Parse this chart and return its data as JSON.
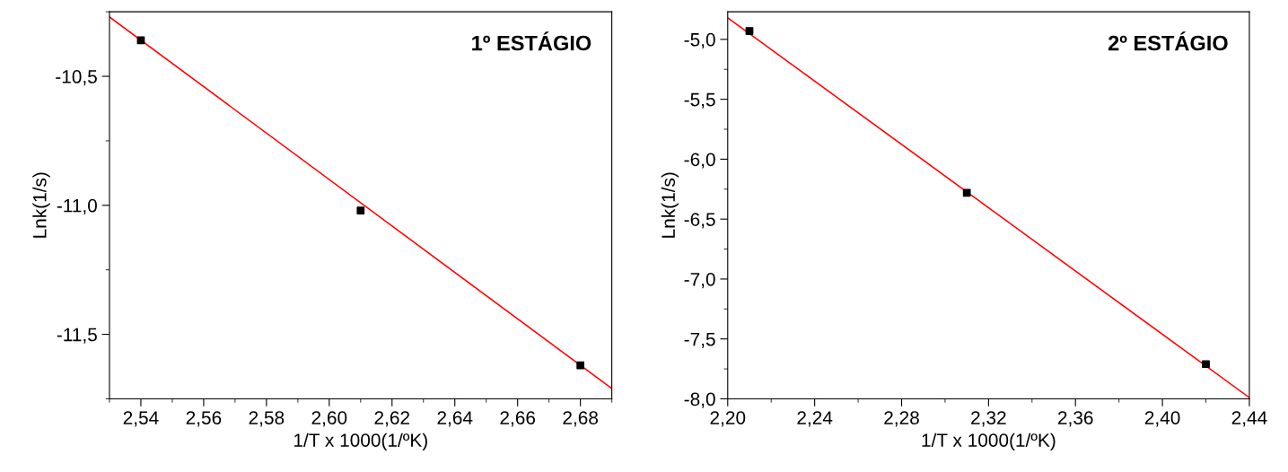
{
  "chart_data": [
    {
      "type": "scatter",
      "title": "1º ESTÁGIO",
      "xlabel": "1/T x 1000(1/ºK)",
      "ylabel": "Lnk(1/s)",
      "xlim": [
        2.53,
        2.69
      ],
      "ylim": [
        -11.75,
        -10.25
      ],
      "xticks": [
        {
          "value": 2.54,
          "label": "2,54"
        },
        {
          "value": 2.56,
          "label": "2,56"
        },
        {
          "value": 2.58,
          "label": "2,58"
        },
        {
          "value": 2.6,
          "label": "2,60"
        },
        {
          "value": 2.62,
          "label": "2,62"
        },
        {
          "value": 2.64,
          "label": "2,64"
        },
        {
          "value": 2.66,
          "label": "2,66"
        },
        {
          "value": 2.68,
          "label": "2,68"
        }
      ],
      "yticks": [
        {
          "value": -10.5,
          "label": "-10,5"
        },
        {
          "value": -11.0,
          "label": "-11,0"
        },
        {
          "value": -11.5,
          "label": "-11,5"
        }
      ],
      "grid": false,
      "legend": false,
      "series": [
        {
          "marker": "square",
          "color": "#000000",
          "x": [
            2.54,
            2.61,
            2.68
          ],
          "values": [
            -10.36,
            -11.02,
            -11.62
          ]
        },
        {
          "type": "line",
          "marker": "none",
          "line_style": "solid",
          "color": "#ff0000",
          "x": [
            2.53,
            2.69
          ],
          "values": [
            -10.27,
            -11.71
          ]
        }
      ]
    },
    {
      "type": "scatter",
      "title": "2º ESTÁGIO",
      "xlabel": "1/T x 1000(1/ºK)",
      "ylabel": "Lnk(1/s)",
      "xlim": [
        2.2,
        2.44
      ],
      "ylim": [
        -8.0,
        -4.77
      ],
      "xticks": [
        {
          "value": 2.2,
          "label": "2,20"
        },
        {
          "value": 2.24,
          "label": "2,24"
        },
        {
          "value": 2.28,
          "label": "2,28"
        },
        {
          "value": 2.32,
          "label": "2,32"
        },
        {
          "value": 2.36,
          "label": "2,36"
        },
        {
          "value": 2.4,
          "label": "2,40"
        },
        {
          "value": 2.44,
          "label": "2,44"
        }
      ],
      "yticks": [
        {
          "value": -5.0,
          "label": "-5,0"
        },
        {
          "value": -5.5,
          "label": "-5,5"
        },
        {
          "value": -6.0,
          "label": "-6,0"
        },
        {
          "value": -6.5,
          "label": "-6,5"
        },
        {
          "value": -7.0,
          "label": "-7,0"
        },
        {
          "value": -7.5,
          "label": "-7,5"
        },
        {
          "value": -8.0,
          "label": "-8,0"
        }
      ],
      "grid": false,
      "legend": false,
      "series": [
        {
          "marker": "square",
          "color": "#000000",
          "x": [
            2.21,
            2.31,
            2.42
          ],
          "values": [
            -4.93,
            -6.28,
            -7.71
          ]
        },
        {
          "type": "line",
          "marker": "none",
          "line_style": "solid",
          "color": "#ff0000",
          "x": [
            2.2,
            2.44
          ],
          "values": [
            -4.82,
            -7.99
          ]
        }
      ]
    }
  ]
}
